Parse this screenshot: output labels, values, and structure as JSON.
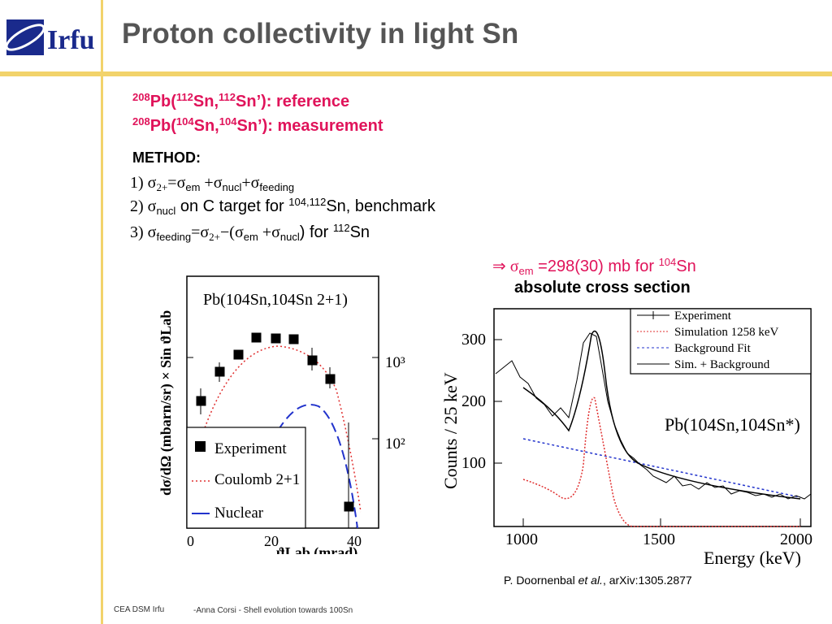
{
  "header": {
    "logo_text": "Irfu",
    "title": "Proton collectivity in light Sn"
  },
  "reactions": {
    "line1": {
      "a": "208",
      "b": "Pb(",
      "c": "112",
      "d": "Sn,",
      "e": "112",
      "f": "Sn’): reference"
    },
    "line2": {
      "a": "208",
      "b": "Pb(",
      "c": "104",
      "d": "Sn,",
      "e": "104",
      "f": "Sn’): measurement"
    }
  },
  "method": {
    "title": "METHOD:",
    "m1": {
      "num": "1) σ",
      "sub1": "2+",
      "eq": "=σ",
      "sub2": "em",
      "p1": " +σ",
      "sub3": "nucl",
      "p2": "+σ",
      "sub4": "feeding"
    },
    "m2": {
      "num": "2) σ",
      "sub1": "nucl",
      "txt": " on C target for ",
      "sup": "104,112",
      "end": "Sn, benchmark"
    },
    "m3": {
      "num": "3) σ",
      "sub1": "feeding",
      "eq": "=σ",
      "sub2": "2+",
      "mid": "−(σ",
      "sub3": "em",
      "p1": " +σ",
      "sub4": "nucl",
      "end": ") for ",
      "sup": "112",
      "tail": "Sn"
    }
  },
  "result": {
    "arrow": "⇒ σ",
    "sub": "em",
    "txt": " =298(30) mb for ",
    "sup": "104",
    "end": "Sn"
  },
  "absolute": "absolute cross section",
  "left_plot": {
    "label": "Pb(104Sn,104Sn 2+1)",
    "ylabel": "dσ/dΩ (mbarn/sr) × Sin ϑLab",
    "xlabel": "ϑLab (mrad)",
    "xticks": [
      "0",
      "20",
      "40"
    ],
    "right_ticks": [
      "10³",
      "10²"
    ],
    "legend": [
      "Experiment",
      "Coulomb 2+1",
      "Nuclear"
    ]
  },
  "right_plot": {
    "ylabel": "Counts / 25 keV",
    "xlabel": "Energy (keV)",
    "yticks": [
      "300",
      "200",
      "100"
    ],
    "xticks": [
      "1000",
      "1500",
      "2000"
    ],
    "label": "Pb(104Sn,104Sn*)",
    "legend": [
      "Experiment",
      "Simulation 1258 keV",
      "Background Fit",
      "Sim. + Background"
    ]
  },
  "citation": {
    "a": "P. Doornenbal ",
    "b": "et al.",
    "c": ", arXiv:1305.2877"
  },
  "footer": {
    "left": "CEA DSM Irfu",
    "right": "-Anna Corsi -   Shell evolution towards 100Sn"
  },
  "colors": {
    "accent_line": "#f2d36b",
    "red_text": "#e0135a",
    "logo_blue": "#1a2a8c"
  }
}
